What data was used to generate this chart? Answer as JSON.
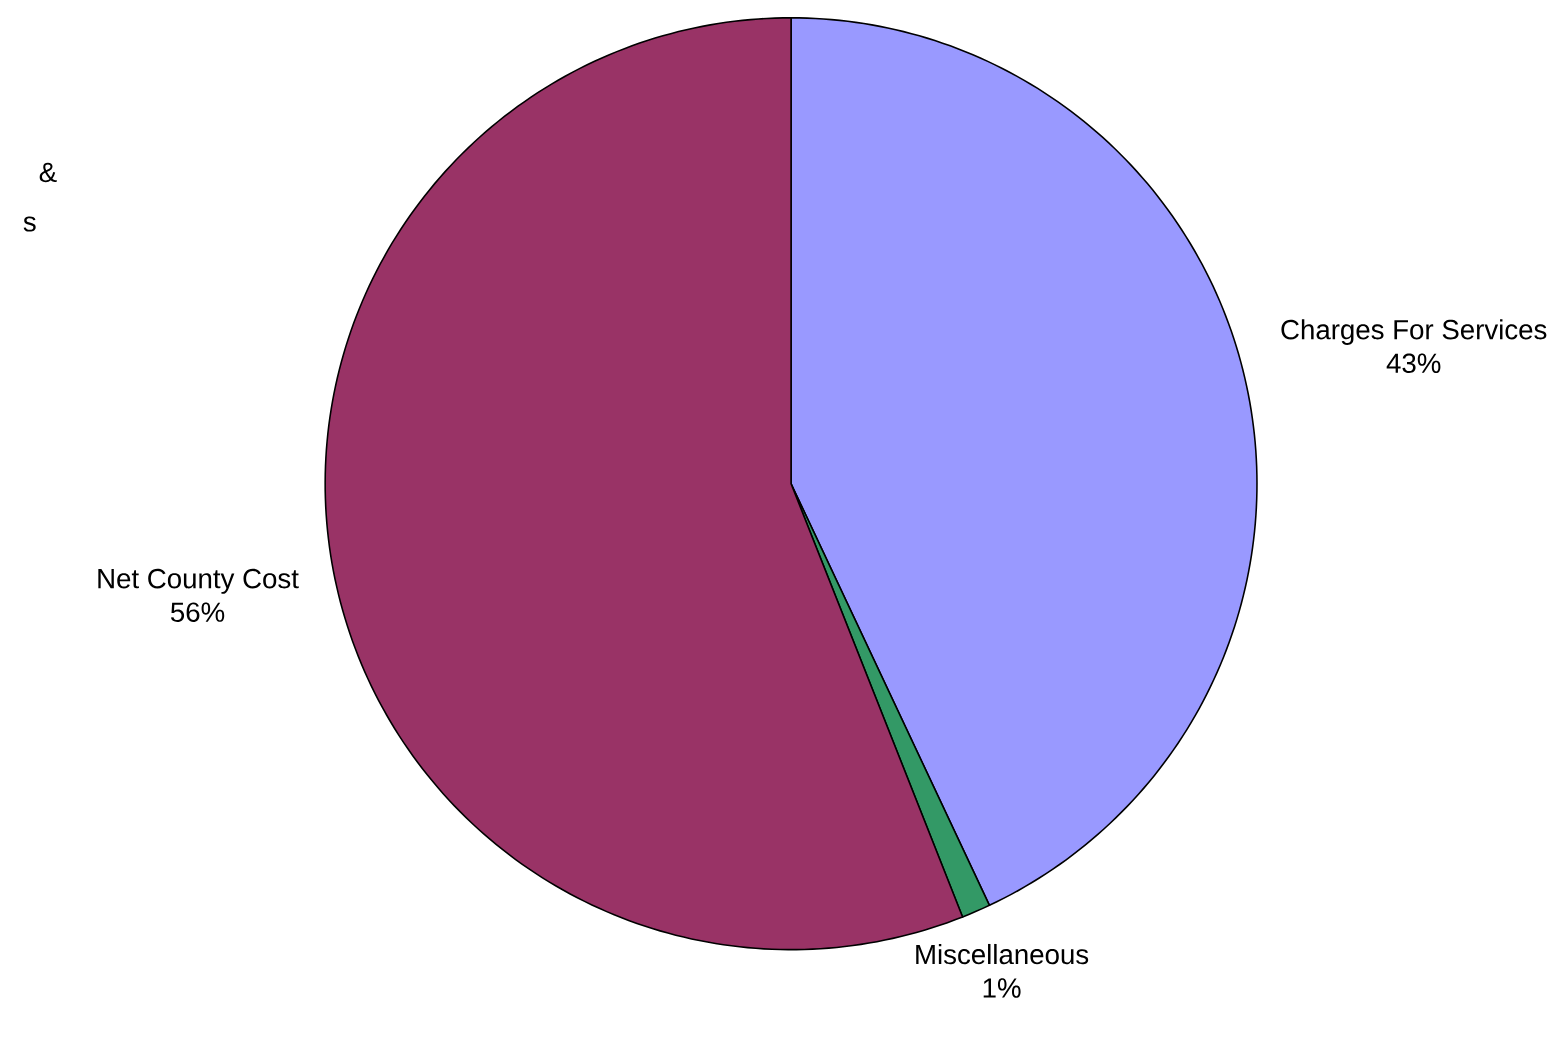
{
  "chart_data": {
    "type": "pie",
    "categories": [
      "Charges For Services",
      "Miscellaneous",
      "Net County Cost"
    ],
    "values": [
      43,
      1,
      56
    ],
    "colors": [
      "#9999ff",
      "#339966",
      "#993366"
    ],
    "value_labels": [
      "43%",
      "1%",
      "56%"
    ],
    "annotations": [
      "&",
      "s"
    ]
  }
}
